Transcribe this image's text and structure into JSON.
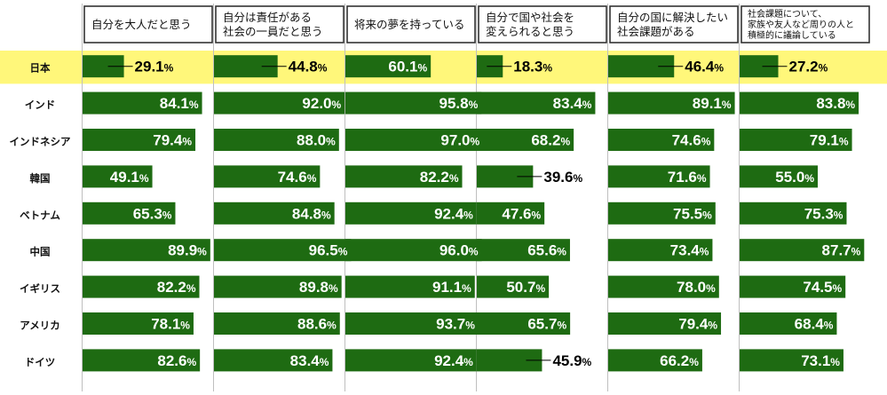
{
  "colors": {
    "bar": "#1e6b12",
    "highlight": "#fff77a",
    "separator": "#bfbfbf"
  },
  "chart_data": {
    "type": "bar",
    "orientation": "horizontal",
    "layout": "small-multiples",
    "unit": "%",
    "xlim": [
      0,
      100
    ],
    "categories": [
      "日本",
      "インド",
      "インドネシア",
      "韓国",
      "ベトナム",
      "中国",
      "イギリス",
      "アメリカ",
      "ドイツ"
    ],
    "highlight_category": "日本",
    "panels": [
      {
        "title_lines": [
          "自分を大人だと思う"
        ],
        "values": [
          29.1,
          84.1,
          79.4,
          49.1,
          65.3,
          89.9,
          82.2,
          78.1,
          82.6
        ]
      },
      {
        "title_lines": [
          "自分は責任がある",
          "社会の一員だと思う"
        ],
        "values": [
          44.8,
          92.0,
          88.0,
          74.6,
          84.8,
          96.5,
          89.8,
          88.6,
          83.4
        ]
      },
      {
        "title_lines": [
          "将来の夢を持っている"
        ],
        "values": [
          60.1,
          95.8,
          97.0,
          82.2,
          92.4,
          96.0,
          91.1,
          93.7,
          92.4
        ]
      },
      {
        "title_lines": [
          "自分で国や社会を",
          "変えられると思う"
        ],
        "values": [
          18.3,
          83.4,
          68.2,
          39.6,
          47.6,
          65.6,
          50.7,
          65.7,
          45.9
        ]
      },
      {
        "title_lines": [
          "自分の国に解決したい",
          "社会課題がある"
        ],
        "values": [
          46.4,
          89.1,
          74.6,
          71.6,
          75.5,
          73.4,
          78.0,
          79.4,
          66.2
        ]
      },
      {
        "title_lines": [
          "社会課題について、",
          "家族や友人など周りの人と",
          "積極的に議論している"
        ],
        "values": [
          27.2,
          83.8,
          79.1,
          55.0,
          75.3,
          87.7,
          74.5,
          68.4,
          73.1
        ]
      }
    ]
  }
}
